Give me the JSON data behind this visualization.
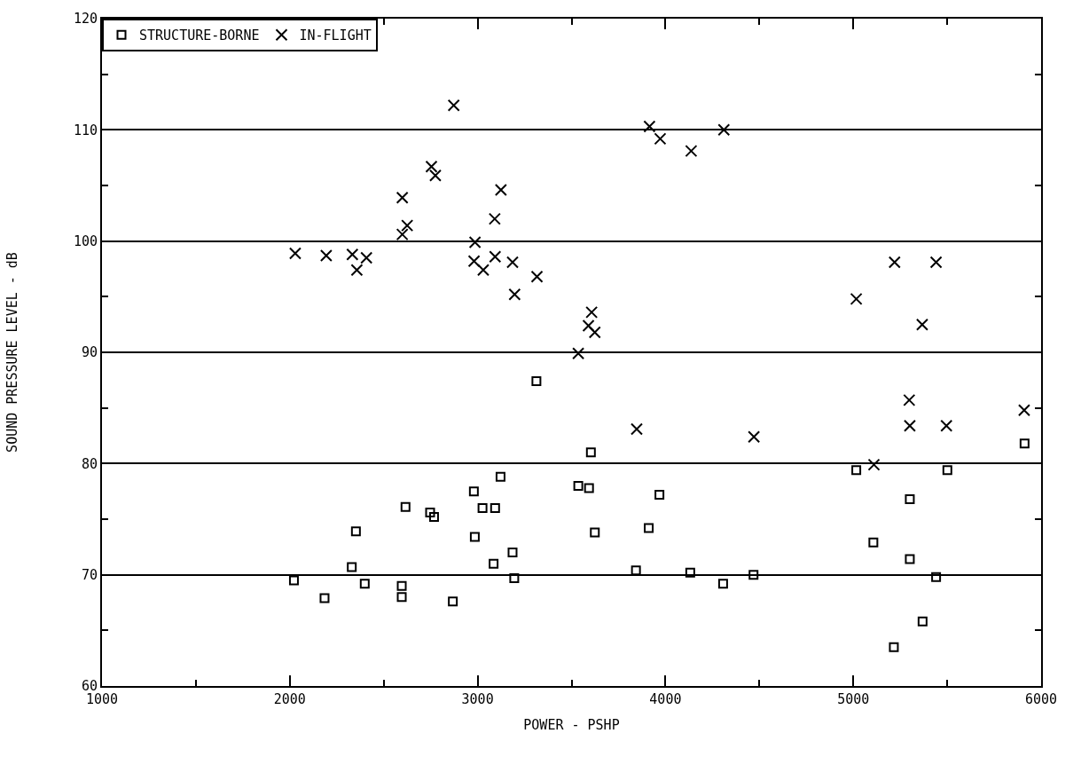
{
  "chart_data": {
    "type": "scatter",
    "xlabel": "POWER - PSHP",
    "ylabel": "SOUND PRESSURE LEVEL - dB",
    "series": [
      {
        "name": "STRUCTURE-BORNE",
        "color": "#000000",
        "marker": "square",
        "x": [
          3313,
          3603,
          3122,
          2980,
          3536,
          3593,
          3968,
          2616,
          3026,
          3093,
          2747,
          2768,
          2352,
          2985,
          3624,
          3911,
          3186,
          3085,
          2330,
          3843,
          2022,
          3195,
          2399,
          2596,
          2596,
          2185,
          2868,
          5912,
          5016,
          5501,
          5301,
          5107,
          5301,
          4132,
          4469,
          4307,
          5441,
          5369,
          5216
        ],
        "values": [
          87.4,
          81.0,
          78.8,
          77.5,
          78.0,
          77.8,
          77.2,
          76.1,
          76.0,
          76.0,
          75.6,
          75.2,
          73.9,
          73.4,
          73.8,
          74.2,
          72.0,
          71.0,
          70.7,
          70.4,
          69.5,
          69.7,
          69.2,
          69.0,
          68.0,
          67.9,
          67.6,
          81.8,
          79.4,
          79.4,
          76.8,
          72.9,
          71.4,
          70.2,
          70.0,
          69.2,
          69.8,
          65.8,
          63.5
        ]
      },
      {
        "name": "IN-FLIGHT",
        "color": "#000000",
        "marker": "cross",
        "x": [
          2873,
          3915,
          3972,
          2754,
          2775,
          3124,
          2599,
          3091,
          2625,
          2599,
          2986,
          2029,
          2194,
          2333,
          2408,
          2357,
          2981,
          3030,
          3093,
          3186,
          3316,
          3197,
          3607,
          3590,
          3624,
          3536,
          4137,
          4311,
          5220,
          5441,
          5016,
          5367,
          5298,
          5301,
          5496,
          5910,
          4471,
          5110,
          3847
        ],
        "values": [
          112.2,
          110.3,
          109.2,
          106.7,
          105.9,
          104.6,
          103.9,
          102.0,
          101.4,
          100.6,
          99.9,
          98.9,
          98.7,
          98.8,
          98.5,
          97.4,
          98.2,
          97.4,
          98.6,
          98.1,
          96.8,
          95.2,
          93.6,
          92.4,
          91.8,
          89.9,
          108.1,
          110.0,
          98.1,
          98.1,
          94.8,
          92.5,
          85.7,
          83.4,
          83.4,
          84.8,
          82.4,
          79.9,
          83.1
        ]
      }
    ],
    "xlim": [
      1000,
      6000
    ],
    "xticks": [
      1000,
      {
        "value": 1500,
        "label": null
      },
      2000,
      {
        "value": 2500,
        "label": null
      },
      3000,
      {
        "value": 3500,
        "label": null
      },
      4000,
      {
        "value": 4500,
        "label": null
      },
      5000,
      {
        "value": 5500,
        "label": null
      },
      6000
    ],
    "ylim": [
      60,
      120
    ],
    "yticks": [
      60,
      {
        "value": 65,
        "label": null
      },
      70,
      {
        "value": 75,
        "label": null
      },
      80,
      {
        "value": 85,
        "label": null
      },
      90,
      {
        "value": 95,
        "label": null
      },
      100,
      {
        "value": 105,
        "label": null
      },
      110,
      {
        "value": 115,
        "label": null
      },
      120
    ],
    "grid": "y",
    "legend": "top left"
  }
}
